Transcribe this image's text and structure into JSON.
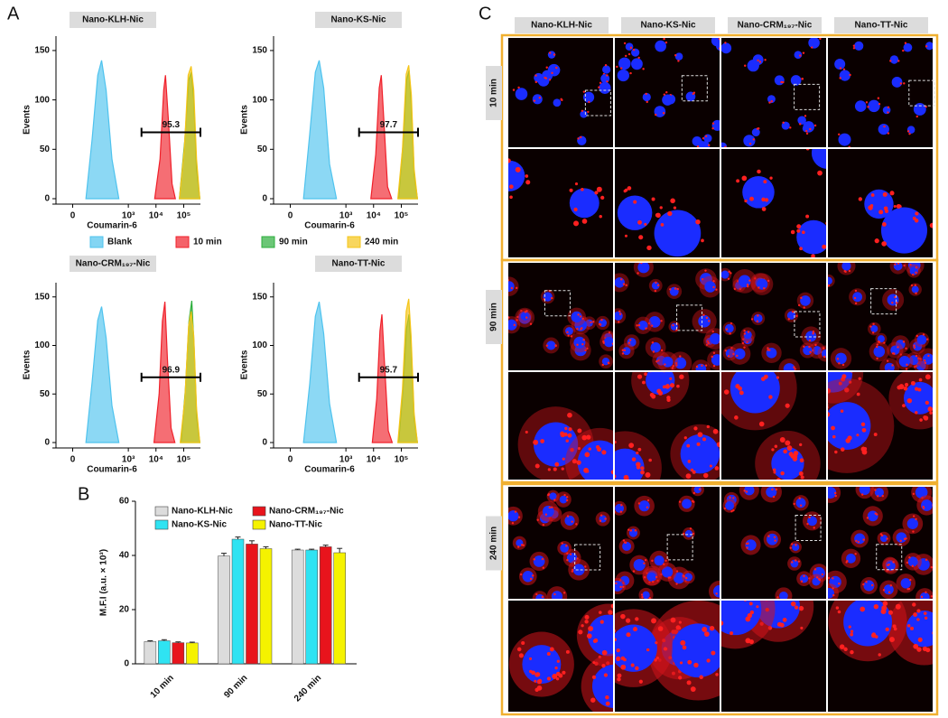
{
  "panel_labels": [
    "A",
    "B",
    "C"
  ],
  "legend": [
    {
      "name": "Blank",
      "color": "#4fc3ee"
    },
    {
      "name": "10 min",
      "color": "#f0202a"
    },
    {
      "name": "90 min",
      "color": "#2cae3c"
    },
    {
      "name": "240 min",
      "color": "#f5c518"
    }
  ],
  "chart_data": [
    {
      "type": "area",
      "title": "Nano-KLH-Nic",
      "xlabel": "Coumarin-6",
      "ylabel": "Events",
      "xscale": "biexponential",
      "xlim": [
        -30,
        400000
      ],
      "xticks": [
        0,
        {
          "value": 1000,
          "label": "10³"
        },
        {
          "value": 10000,
          "label": "10⁴"
        },
        {
          "value": 100000,
          "label": "10⁵"
        }
      ],
      "ylim": [
        0,
        160
      ],
      "yticks": [
        0,
        50,
        100,
        150
      ],
      "gate": {
        "value": 95.3,
        "range": [
          3000,
          400000
        ]
      },
      "series": [
        {
          "x": [
            20,
            40,
            70,
            100,
            150,
            250,
            450
          ],
          "values": [
            0,
            60,
            125,
            140,
            110,
            40,
            0
          ]
        },
        {
          "x": [
            9000,
            14000,
            19000,
            22000,
            28000,
            38000,
            50000
          ],
          "values": [
            0,
            40,
            110,
            125,
            80,
            15,
            0
          ]
        },
        {
          "x": [
            70000,
            110000,
            150000,
            190000,
            230000,
            290000,
            380000
          ],
          "values": [
            0,
            60,
            120,
            128,
            100,
            30,
            0
          ]
        },
        {
          "x": [
            70000,
            105000,
            145000,
            185000,
            230000,
            290000,
            380000
          ],
          "values": [
            0,
            50,
            125,
            134,
            110,
            40,
            0
          ]
        }
      ]
    },
    {
      "type": "area",
      "title": "Nano-KS-Nic",
      "xlabel": "Coumarin-6",
      "ylabel": "Events",
      "xscale": "biexponential",
      "xlim": [
        -30,
        400000
      ],
      "xticks": [
        0,
        {
          "value": 1000,
          "label": "10³"
        },
        {
          "value": 10000,
          "label": "10⁴"
        },
        {
          "value": 100000,
          "label": "10⁵"
        }
      ],
      "ylim": [
        0,
        160
      ],
      "yticks": [
        0,
        50,
        100,
        150
      ],
      "gate": {
        "value": 97.7,
        "range": [
          3000,
          400000
        ]
      },
      "series": [
        {
          "x": [
            20,
            40,
            70,
            100,
            150,
            250,
            450
          ],
          "values": [
            0,
            65,
            128,
            140,
            112,
            35,
            0
          ]
        },
        {
          "x": [
            8000,
            12000,
            16000,
            19000,
            24000,
            32000,
            45000
          ],
          "values": [
            0,
            45,
            112,
            125,
            75,
            12,
            0
          ]
        },
        {
          "x": [
            80000,
            115000,
            155000,
            190000,
            230000,
            290000,
            380000
          ],
          "values": [
            0,
            55,
            120,
            130,
            95,
            25,
            0
          ]
        },
        {
          "x": [
            75000,
            110000,
            150000,
            185000,
            230000,
            290000,
            380000
          ],
          "values": [
            0,
            50,
            126,
            135,
            105,
            30,
            0
          ]
        }
      ]
    },
    {
      "type": "area",
      "title": "Nano-CRM₁₉₇-Nic",
      "xlabel": "Coumarin-6",
      "ylabel": "Events",
      "xscale": "biexponential",
      "xlim": [
        -30,
        400000
      ],
      "xticks": [
        0,
        {
          "value": 1000,
          "label": "10³"
        },
        {
          "value": 10000,
          "label": "10⁴"
        },
        {
          "value": 100000,
          "label": "10⁵"
        }
      ],
      "ylim": [
        0,
        160
      ],
      "yticks": [
        0,
        50,
        100,
        150
      ],
      "gate": {
        "value": 96.9,
        "range": [
          3000,
          400000
        ]
      },
      "series": [
        {
          "x": [
            20,
            40,
            70,
            100,
            150,
            250,
            450
          ],
          "values": [
            0,
            62,
            126,
            140,
            108,
            38,
            0
          ]
        },
        {
          "x": [
            8500,
            13000,
            17000,
            21000,
            26000,
            35000,
            48000
          ],
          "values": [
            0,
            50,
            125,
            145,
            85,
            15,
            0
          ]
        },
        {
          "x": [
            80000,
            115000,
            155000,
            195000,
            235000,
            295000,
            380000
          ],
          "values": [
            0,
            55,
            125,
            146,
            100,
            25,
            0
          ]
        },
        {
          "x": [
            75000,
            110000,
            150000,
            185000,
            230000,
            290000,
            380000
          ],
          "values": [
            0,
            45,
            120,
            135,
            110,
            35,
            0
          ]
        }
      ]
    },
    {
      "type": "area",
      "title": "Nano-TT-Nic",
      "xlabel": "Coumarin-6",
      "ylabel": "Events",
      "xscale": "biexponential",
      "xlim": [
        -30,
        400000
      ],
      "xticks": [
        0,
        {
          "value": 1000,
          "label": "10³"
        },
        {
          "value": 10000,
          "label": "10⁴"
        },
        {
          "value": 100000,
          "label": "10⁵"
        }
      ],
      "ylim": [
        0,
        160
      ],
      "yticks": [
        0,
        50,
        100,
        150
      ],
      "gate": {
        "value": 95.7,
        "range": [
          3000,
          400000
        ]
      },
      "series": [
        {
          "x": [
            20,
            40,
            70,
            100,
            150,
            250,
            450
          ],
          "values": [
            0,
            60,
            130,
            145,
            112,
            40,
            0
          ]
        },
        {
          "x": [
            9000,
            13000,
            17000,
            20000,
            25000,
            34000,
            47000
          ],
          "values": [
            0,
            45,
            115,
            132,
            80,
            12,
            0
          ]
        },
        {
          "x": [
            80000,
            115000,
            155000,
            190000,
            230000,
            290000,
            380000
          ],
          "values": [
            0,
            55,
            118,
            132,
            95,
            25,
            0
          ]
        },
        {
          "x": [
            75000,
            110000,
            150000,
            185000,
            225000,
            290000,
            380000
          ],
          "values": [
            0,
            55,
            135,
            148,
            110,
            30,
            0
          ]
        }
      ]
    },
    {
      "type": "bar",
      "ylabel": "M.F.I (a.u. × 10³)",
      "categories": [
        "10 min",
        "90 min",
        "240 min"
      ],
      "ylim": [
        0,
        60
      ],
      "yticks": [
        0,
        20,
        40,
        60
      ],
      "series": [
        {
          "name": "Nano-KLH-Nic",
          "color": "#dcdcdc",
          "values": [
            8.2,
            39.8,
            42.0
          ],
          "errors": [
            0.3,
            1.0,
            0.3
          ]
        },
        {
          "name": "Nano-KS-Nic",
          "color": "#2fe3f2",
          "values": [
            8.5,
            46.0,
            42.0
          ],
          "errors": [
            0.4,
            0.8,
            0.3
          ]
        },
        {
          "name": "Nano-CRM₁₉₇-Nic",
          "color": "#e8141c",
          "values": [
            7.8,
            44.2,
            43.2
          ],
          "errors": [
            0.3,
            1.2,
            0.6
          ]
        },
        {
          "name": "Nano-TT-Nic",
          "color": "#f5f200",
          "values": [
            7.7,
            42.5,
            41.0
          ],
          "errors": [
            0.3,
            0.7,
            1.6
          ]
        }
      ]
    }
  ],
  "microscopy": {
    "columns": [
      "Nano-KLH-Nic",
      "Nano-KS-Nic",
      "Nano-CRM₁₉₇-Nic",
      "Nano-TT-Nic"
    ],
    "rows": [
      "10 min",
      "90 min",
      "240 min"
    ]
  }
}
